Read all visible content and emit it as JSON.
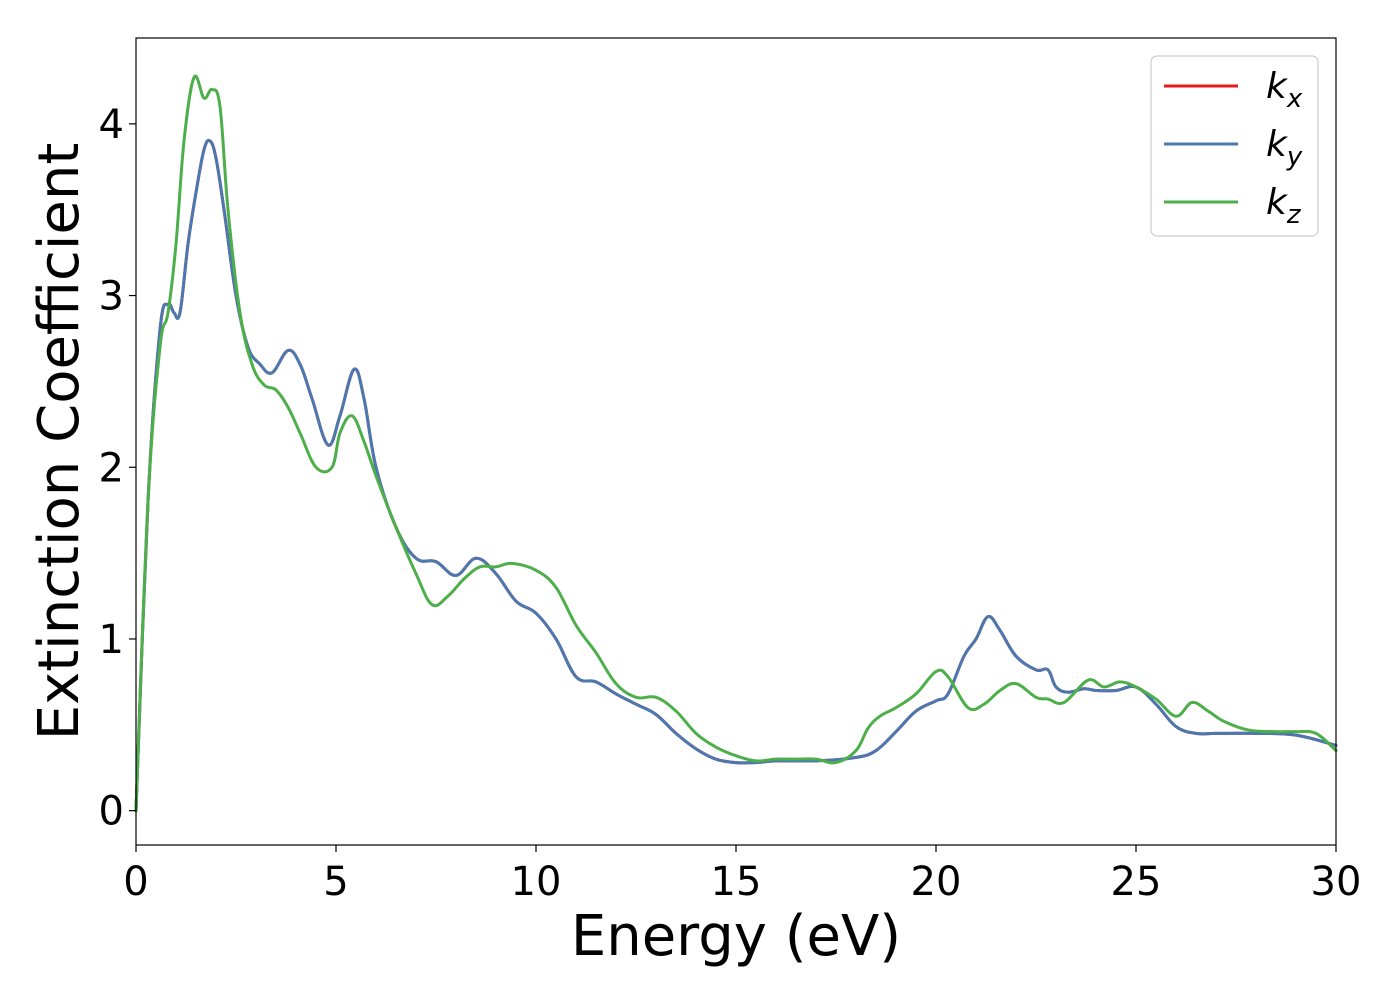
{
  "chart_data": {
    "type": "line",
    "xlabel": "Energy (eV)",
    "ylabel": "Extinction Coefficient",
    "xlim": [
      0,
      30
    ],
    "ylim": [
      -0.2,
      4.5
    ],
    "xticks": [
      0,
      5,
      10,
      15,
      20,
      25,
      30
    ],
    "yticks": [
      0,
      1,
      2,
      3,
      4
    ],
    "grid": false,
    "legend_position": "top-right",
    "series": [
      {
        "name": "k_x",
        "label_base": "k",
        "label_sub": "x",
        "color": "#e41a1c",
        "x": [
          0,
          0.3,
          0.6,
          0.8,
          0.95,
          1.1,
          1.3,
          1.5,
          1.7,
          1.85,
          2.0,
          2.2,
          2.5,
          2.8,
          3.1,
          3.4,
          3.8,
          4.1,
          4.4,
          4.8,
          5.1,
          5.45,
          5.7,
          6.0,
          6.5,
          7.0,
          7.5,
          8.0,
          8.5,
          9.0,
          9.5,
          10.0,
          10.5,
          11.0,
          11.5,
          12.0,
          12.5,
          13.0,
          13.5,
          14.0,
          14.5,
          15.0,
          15.5,
          16.0,
          17.0,
          18.0,
          18.5,
          19.0,
          19.5,
          20.0,
          20.3,
          20.7,
          21.0,
          21.3,
          21.6,
          22.0,
          22.5,
          22.8,
          23.0,
          23.3,
          23.7,
          24.0,
          24.5,
          25.0,
          25.5,
          26.0,
          26.5,
          27.0,
          28.0,
          29.0,
          30.0
        ],
        "values": [
          0,
          1.8,
          2.8,
          2.95,
          2.9,
          2.9,
          3.3,
          3.6,
          3.85,
          3.9,
          3.8,
          3.5,
          3.0,
          2.7,
          2.6,
          2.55,
          2.68,
          2.6,
          2.4,
          2.13,
          2.3,
          2.57,
          2.4,
          2.0,
          1.65,
          1.47,
          1.45,
          1.37,
          1.47,
          1.38,
          1.22,
          1.15,
          1.0,
          0.78,
          0.75,
          0.68,
          0.62,
          0.56,
          0.45,
          0.36,
          0.3,
          0.28,
          0.28,
          0.29,
          0.29,
          0.31,
          0.35,
          0.46,
          0.58,
          0.64,
          0.68,
          0.9,
          1.0,
          1.13,
          1.05,
          0.9,
          0.82,
          0.82,
          0.72,
          0.69,
          0.71,
          0.7,
          0.7,
          0.72,
          0.62,
          0.49,
          0.45,
          0.45,
          0.45,
          0.44,
          0.38
        ]
      },
      {
        "name": "k_y",
        "label_base": "k",
        "label_sub": "y",
        "color": "#4a78b0",
        "x": [
          0,
          0.3,
          0.6,
          0.8,
          0.95,
          1.1,
          1.3,
          1.5,
          1.7,
          1.85,
          2.0,
          2.2,
          2.5,
          2.8,
          3.1,
          3.4,
          3.8,
          4.1,
          4.4,
          4.8,
          5.1,
          5.45,
          5.7,
          6.0,
          6.5,
          7.0,
          7.5,
          8.0,
          8.5,
          9.0,
          9.5,
          10.0,
          10.5,
          11.0,
          11.5,
          12.0,
          12.5,
          13.0,
          13.5,
          14.0,
          14.5,
          15.0,
          15.5,
          16.0,
          17.0,
          18.0,
          18.5,
          19.0,
          19.5,
          20.0,
          20.3,
          20.7,
          21.0,
          21.3,
          21.6,
          22.0,
          22.5,
          22.8,
          23.0,
          23.3,
          23.7,
          24.0,
          24.5,
          25.0,
          25.5,
          26.0,
          26.5,
          27.0,
          28.0,
          29.0,
          30.0
        ],
        "values": [
          0,
          1.8,
          2.8,
          2.95,
          2.9,
          2.9,
          3.3,
          3.6,
          3.85,
          3.9,
          3.8,
          3.5,
          3.0,
          2.7,
          2.6,
          2.55,
          2.68,
          2.6,
          2.4,
          2.13,
          2.3,
          2.57,
          2.4,
          2.0,
          1.65,
          1.47,
          1.45,
          1.37,
          1.47,
          1.38,
          1.22,
          1.15,
          1.0,
          0.78,
          0.75,
          0.68,
          0.62,
          0.56,
          0.45,
          0.36,
          0.3,
          0.28,
          0.28,
          0.29,
          0.29,
          0.31,
          0.35,
          0.46,
          0.58,
          0.64,
          0.68,
          0.9,
          1.0,
          1.13,
          1.05,
          0.9,
          0.82,
          0.82,
          0.72,
          0.69,
          0.71,
          0.7,
          0.7,
          0.72,
          0.62,
          0.49,
          0.45,
          0.45,
          0.45,
          0.44,
          0.38
        ]
      },
      {
        "name": "k_z",
        "label_base": "k",
        "label_sub": "z",
        "color": "#4daf4a",
        "x": [
          0,
          0.3,
          0.6,
          0.8,
          1.0,
          1.2,
          1.45,
          1.7,
          1.9,
          2.1,
          2.3,
          2.6,
          2.9,
          3.2,
          3.5,
          3.8,
          4.1,
          4.5,
          4.9,
          5.1,
          5.4,
          5.7,
          6.0,
          6.5,
          7.0,
          7.4,
          7.8,
          8.2,
          8.6,
          9.0,
          9.4,
          10.0,
          10.5,
          11.0,
          11.5,
          12.0,
          12.5,
          13.0,
          13.5,
          14.0,
          14.5,
          15.0,
          15.5,
          16.0,
          16.5,
          17.0,
          17.5,
          18.0,
          18.3,
          18.6,
          19.0,
          19.5,
          20.0,
          20.3,
          20.8,
          21.2,
          21.6,
          22.0,
          22.5,
          22.8,
          23.2,
          23.8,
          24.2,
          24.6,
          25.0,
          25.5,
          26.0,
          26.4,
          26.8,
          27.2,
          27.8,
          28.5,
          29.0,
          29.5,
          30.0
        ],
        "values": [
          0,
          1.8,
          2.7,
          2.9,
          3.3,
          3.9,
          4.27,
          4.15,
          4.2,
          4.1,
          3.5,
          2.9,
          2.6,
          2.48,
          2.45,
          2.35,
          2.2,
          2.0,
          2.0,
          2.2,
          2.3,
          2.15,
          1.95,
          1.65,
          1.38,
          1.2,
          1.25,
          1.35,
          1.42,
          1.42,
          1.44,
          1.4,
          1.3,
          1.08,
          0.92,
          0.74,
          0.66,
          0.66,
          0.58,
          0.45,
          0.37,
          0.32,
          0.29,
          0.3,
          0.3,
          0.3,
          0.28,
          0.35,
          0.48,
          0.55,
          0.6,
          0.68,
          0.81,
          0.78,
          0.6,
          0.62,
          0.7,
          0.74,
          0.66,
          0.65,
          0.63,
          0.76,
          0.72,
          0.75,
          0.72,
          0.65,
          0.55,
          0.63,
          0.58,
          0.52,
          0.47,
          0.46,
          0.46,
          0.45,
          0.35
        ]
      }
    ]
  }
}
